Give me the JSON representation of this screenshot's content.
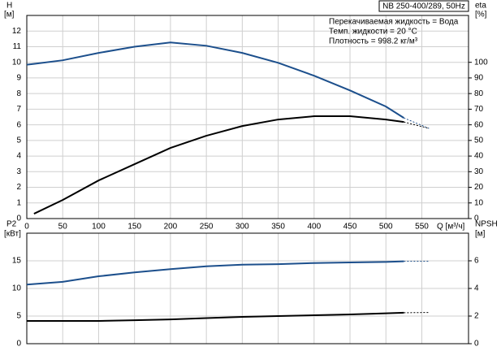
{
  "chart_data": [
    {
      "type": "line",
      "title": "NB 250-400/289, 50Hz",
      "annotations": [
        "Перекачиваемая жидкость = Вода",
        "Темп. жидкости = 20 °C",
        "Плотность = 998.2 кг/м³"
      ],
      "xlabel": "Q [м³/ч]",
      "ylabel": [
        "H",
        "[м]"
      ],
      "y2label": [
        "eta",
        "[%]"
      ],
      "x": [
        0,
        10,
        50,
        100,
        150,
        200,
        250,
        300,
        350,
        400,
        450,
        500,
        525,
        560
      ],
      "xlim": [
        0,
        615
      ],
      "xticks": [
        0,
        50,
        100,
        150,
        200,
        250,
        300,
        350,
        400,
        450,
        500,
        550
      ],
      "ylim": [
        0,
        13
      ],
      "yticks": [
        0,
        1,
        2,
        3,
        4,
        5,
        6,
        7,
        8,
        9,
        10,
        11,
        12
      ],
      "y2lim": [
        0,
        130
      ],
      "y2ticks": [
        0,
        10,
        20,
        30,
        40,
        50,
        60,
        70,
        80,
        90,
        100
      ],
      "grid": true,
      "series": [
        {
          "color": "#1c4f8c",
          "values": [
            9.85,
            9.9,
            10.13,
            10.6,
            11.0,
            11.27,
            11.06,
            10.6,
            9.97,
            9.14,
            8.2,
            7.17,
            6.44,
            5.77
          ]
        },
        {
          "color": "#000000",
          "axis": "y2",
          "values": [
            null,
            3.1,
            11.9,
            24.4,
            34.8,
            45.2,
            53,
            59.2,
            63.4,
            65.5,
            65.5,
            63.4,
            61.8,
            57.7
          ]
        }
      ]
    },
    {
      "type": "line",
      "ylabel": [
        "P2",
        "[кВт]"
      ],
      "y2label": [
        "NPSH",
        "[м]"
      ],
      "x": [
        0,
        50,
        100,
        150,
        200,
        250,
        300,
        350,
        400,
        450,
        500,
        525,
        560
      ],
      "xlim": [
        0,
        615
      ],
      "ylim": [
        0,
        20
      ],
      "yticks": [
        0,
        5,
        10,
        15
      ],
      "y2lim": [
        0,
        8
      ],
      "y2ticks": [
        0,
        2,
        4,
        6
      ],
      "grid": true,
      "series": [
        {
          "color": "#1c4f8c",
          "values": [
            10.7,
            11.2,
            12.2,
            12.9,
            13.5,
            14.0,
            14.3,
            14.4,
            14.6,
            14.7,
            14.8,
            14.9,
            14.9
          ]
        },
        {
          "color": "#000000",
          "axis": "y2",
          "values": [
            1.65,
            1.65,
            1.65,
            1.7,
            1.76,
            1.85,
            1.94,
            2.0,
            2.06,
            2.12,
            2.2,
            2.24,
            2.26
          ]
        }
      ]
    }
  ]
}
